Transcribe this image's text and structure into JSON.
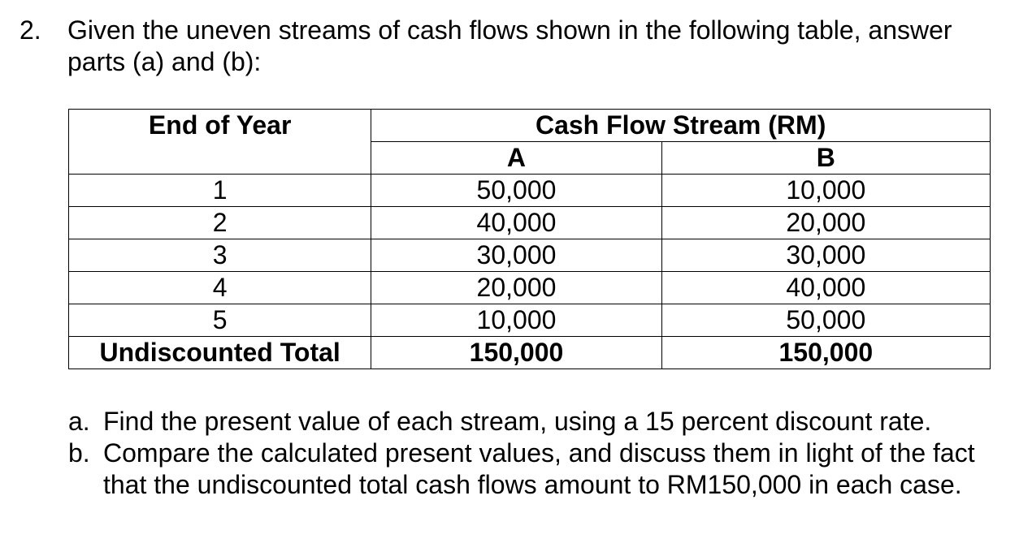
{
  "question": {
    "number": "2.",
    "text": "Given the uneven streams of cash flows shown in the following table, answer parts (a) and (b):"
  },
  "table": {
    "year_header": "End of Year",
    "stream_header": "Cash Flow Stream (RM)",
    "col_a": "A",
    "col_b": "B",
    "rows": [
      {
        "year": "1",
        "a": "50,000",
        "b": "10,000"
      },
      {
        "year": "2",
        "a": "40,000",
        "b": "20,000"
      },
      {
        "year": "3",
        "a": "30,000",
        "b": "30,000"
      },
      {
        "year": "4",
        "a": "20,000",
        "b": "40,000"
      },
      {
        "year": "5",
        "a": "10,000",
        "b": "50,000"
      }
    ],
    "total_label": "Undiscounted Total",
    "total_a": "150,000",
    "total_b": "150,000"
  },
  "parts": [
    {
      "label": "a.",
      "text": "Find the present value of each stream, using a 15 percent discount rate."
    },
    {
      "label": "b.",
      "text": "Compare the calculated present values, and discuss them in light of the fact that the undiscounted total cash flows amount to RM150,000 in each case."
    }
  ]
}
